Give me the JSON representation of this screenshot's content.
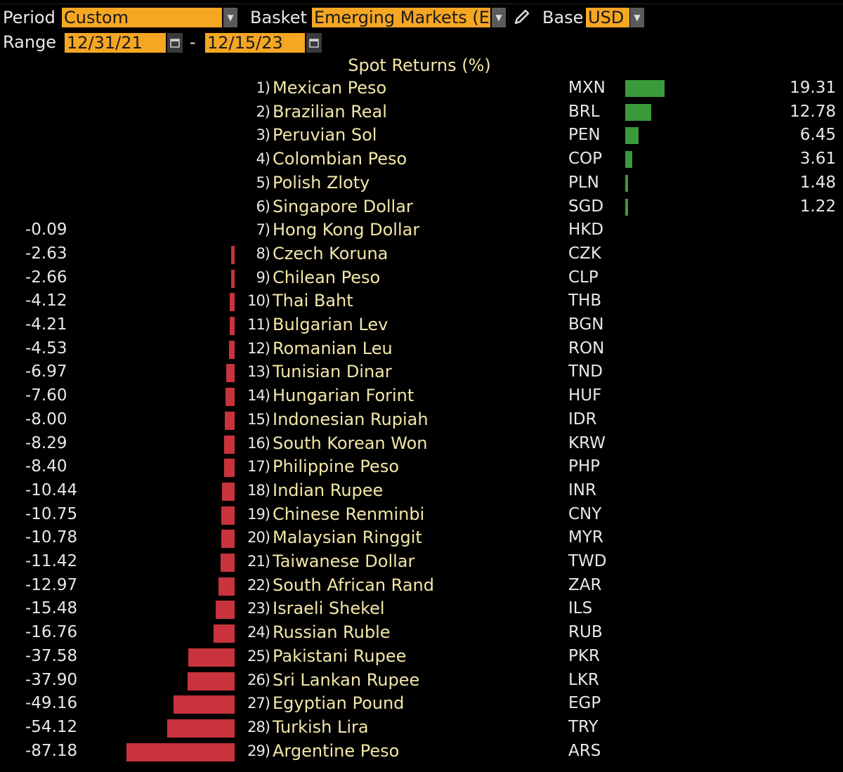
{
  "header": {
    "period_label": "Period",
    "period_value": "Custom",
    "basket_label": "Basket",
    "basket_value": "Emerging Markets (E",
    "base_label": "Base",
    "base_value": "USD",
    "range_label": "Range",
    "range_start": "12/31/21",
    "range_sep": "-",
    "range_end": "12/15/23"
  },
  "icons": {
    "dropdown": "chevron-down-icon",
    "calendar": "calendar-icon",
    "edit": "pencil-icon"
  },
  "colors": {
    "accent": "#f5a623",
    "positive": "#3a9a3a",
    "negative": "#c8333d",
    "name_text": "#f2e7a8"
  },
  "chart_data": {
    "type": "bar",
    "title": "Spot Returns (%)",
    "unit": "%",
    "orientation": "horizontal-diverging",
    "categories": [
      "Mexican Peso",
      "Brazilian Real",
      "Peruvian Sol",
      "Colombian Peso",
      "Polish Zloty",
      "Singapore Dollar",
      "Hong Kong Dollar",
      "Czech Koruna",
      "Chilean Peso",
      "Thai Baht",
      "Bulgarian Lev",
      "Romanian Leu",
      "Tunisian Dinar",
      "Hungarian Forint",
      "Indonesian Rupiah",
      "South Korean Won",
      "Philippine Peso",
      "Indian Rupee",
      "Chinese Renminbi",
      "Malaysian Ringgit",
      "Taiwanese Dollar",
      "South African Rand",
      "Israeli Shekel",
      "Russian Ruble",
      "Pakistani Rupee",
      "Sri Lankan Rupee",
      "Egyptian Pound",
      "Turkish Lira",
      "Argentine Peso"
    ],
    "codes": [
      "MXN",
      "BRL",
      "PEN",
      "COP",
      "PLN",
      "SGD",
      "HKD",
      "CZK",
      "CLP",
      "THB",
      "BGN",
      "RON",
      "TND",
      "HUF",
      "IDR",
      "KRW",
      "PHP",
      "INR",
      "CNY",
      "MYR",
      "TWD",
      "ZAR",
      "ILS",
      "RUB",
      "PKR",
      "LKR",
      "EGP",
      "TRY",
      "ARS"
    ],
    "ranks": [
      "1)",
      "2)",
      "3)",
      "4)",
      "5)",
      "6)",
      "7)",
      "8)",
      "9)",
      "10)",
      "11)",
      "12)",
      "13)",
      "14)",
      "15)",
      "16)",
      "17)",
      "18)",
      "19)",
      "20)",
      "21)",
      "22)",
      "23)",
      "24)",
      "25)",
      "26)",
      "27)",
      "28)",
      "29)"
    ],
    "values": [
      19.31,
      12.78,
      6.45,
      3.61,
      1.48,
      1.22,
      -0.09,
      -2.63,
      -2.66,
      -4.12,
      -4.21,
      -4.53,
      -6.97,
      -7.6,
      -8.0,
      -8.29,
      -8.4,
      -10.44,
      -10.75,
      -10.78,
      -11.42,
      -12.97,
      -15.48,
      -16.76,
      -37.58,
      -37.9,
      -49.16,
      -54.12,
      -87.18
    ],
    "labels": [
      "19.31",
      "12.78",
      "6.45",
      "3.61",
      "1.48",
      "1.22",
      "-0.09",
      "-2.63",
      "-2.66",
      "-4.12",
      "-4.21",
      "-4.53",
      "-6.97",
      "-7.60",
      "-8.00",
      "-8.29",
      "-8.40",
      "-10.44",
      "-10.75",
      "-10.78",
      "-11.42",
      "-12.97",
      "-15.48",
      "-16.76",
      "-37.58",
      "-37.90",
      "-49.16",
      "-54.12",
      "-87.18"
    ]
  }
}
